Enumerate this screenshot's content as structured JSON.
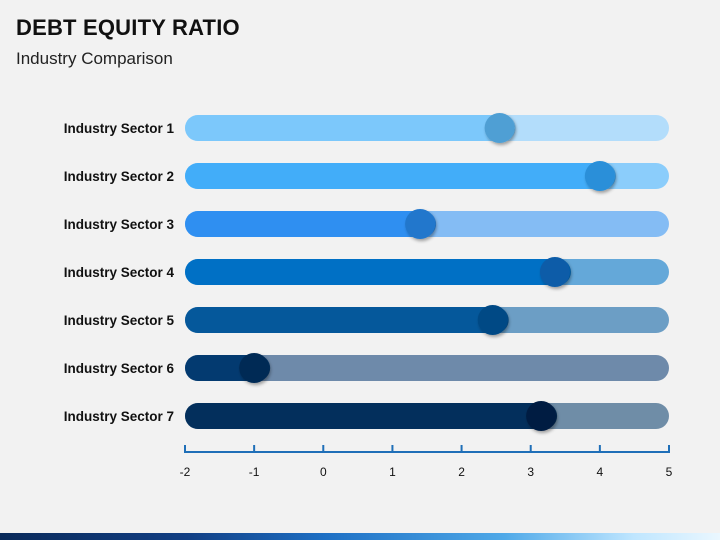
{
  "slide": {
    "title": "DEBT EQUITY RATIO",
    "subtitle": "Industry Comparison"
  },
  "chart_data": {
    "type": "bar",
    "orientation": "horizontal",
    "categories": [
      "Industry Sector 1",
      "Industry Sector 2",
      "Industry Sector 3",
      "Industry Sector 4",
      "Industry Sector 5",
      "Industry Sector 6",
      "Industry Sector 7"
    ],
    "values": [
      2.55,
      4.0,
      1.4,
      3.35,
      2.45,
      -1.0,
      3.15
    ],
    "xlim": [
      -2,
      5
    ],
    "x_ticks": [
      -2,
      -1,
      0,
      1,
      2,
      3,
      4,
      5
    ],
    "title": "",
    "xlabel": "",
    "ylabel": "",
    "grid": false,
    "colors": {
      "fills": [
        "#7cc8fb",
        "#42adf9",
        "#2f8ff1",
        "#0070c5",
        "#05589b",
        "#033a70",
        "#032f5c"
      ],
      "tracks": [
        "#b3ddfb",
        "#8bcdfb",
        "#84bcf4",
        "#64a8d9",
        "#6c9ec5",
        "#6e8aaa",
        "#6f8da7"
      ],
      "knobs": [
        "#4f9fd4",
        "#2a8fd9",
        "#2077cc",
        "#0a5ca8",
        "#054a85",
        "#022b55",
        "#021f42"
      ],
      "axis": "#1f6fb8"
    }
  }
}
